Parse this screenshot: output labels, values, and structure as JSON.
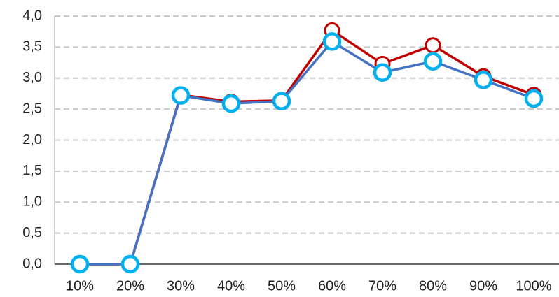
{
  "chart_data": {
    "type": "line",
    "categories": [
      "10%",
      "20%",
      "30%",
      "40%",
      "50%",
      "60%",
      "70%",
      "80%",
      "90%",
      "100%"
    ],
    "series": [
      {
        "color": "#c00000",
        "marker_color": "#c00000",
        "values": [
          0,
          0,
          2.73,
          2.62,
          2.64,
          3.77,
          3.23,
          3.53,
          3.03,
          2.73
        ]
      },
      {
        "color": "#4472c4",
        "marker_color": "#00b0f0",
        "values": [
          0,
          0,
          2.72,
          2.59,
          2.63,
          3.59,
          3.09,
          3.27,
          2.97,
          2.67
        ]
      }
    ],
    "ylim": [
      0,
      4
    ],
    "yticks": [
      {
        "value": 0,
        "label": "0,0"
      },
      {
        "value": 0.5,
        "label": "0,5"
      },
      {
        "value": 1,
        "label": "1,0"
      },
      {
        "value": 1.5,
        "label": "1,5"
      },
      {
        "value": 2,
        "label": "2,0"
      },
      {
        "value": 2.5,
        "label": "2,5"
      },
      {
        "value": 3,
        "label": "3,0"
      },
      {
        "value": 3.5,
        "label": "3,5"
      },
      {
        "value": 4,
        "label": "4,0"
      }
    ],
    "grid": true
  }
}
